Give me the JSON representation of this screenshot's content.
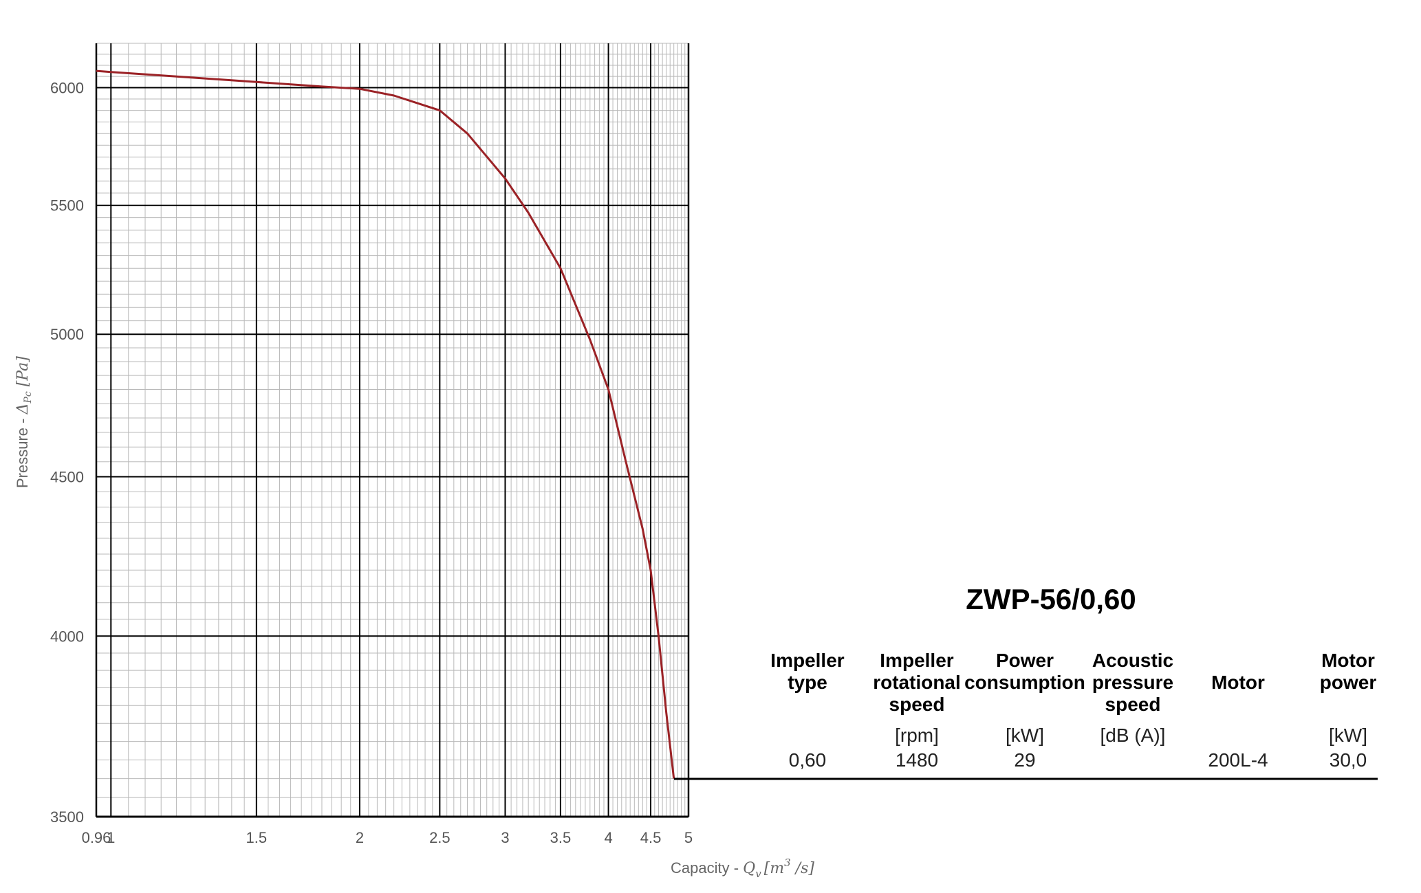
{
  "chart_data": {
    "type": "line",
    "xscale": "log",
    "yscale": "log",
    "xlim": [
      0.96,
      5
    ],
    "ylim": [
      3500,
      6200
    ],
    "x_ticks": [
      0.96,
      1,
      1.5,
      2,
      2.5,
      3,
      3.5,
      4,
      4.5,
      5
    ],
    "x_tick_labels": [
      "0.96",
      "1",
      "1.5",
      "2",
      "2.5",
      "3",
      "3.5",
      "4",
      "4.5",
      "5"
    ],
    "y_ticks": [
      3500,
      4000,
      4500,
      5000,
      5500,
      6000
    ],
    "y_tick_labels": [
      "3500",
      "4000",
      "4500",
      "5000",
      "5500",
      "6000"
    ],
    "xlabel": "Capacity - ",
    "xlabel_math": "Q",
    "xlabel_math_sub": "v",
    "xlabel_unit": "[m",
    "xlabel_unit_sup": "3",
    "xlabel_unit_end": " /s]",
    "ylabel": "Pressure - ",
    "ylabel_math": "Δ",
    "ylabel_math_sub": "Pc",
    "ylabel_unit": " [Pa]",
    "grid": true,
    "series": [
      {
        "color": "#9b2226",
        "x": [
          0.96,
          1.0,
          1.2,
          1.5,
          1.8,
          2.0,
          2.2,
          2.5,
          2.7,
          3.0,
          3.2,
          3.5,
          3.8,
          4.0,
          4.2,
          4.4,
          4.5,
          4.6,
          4.7,
          4.8
        ],
        "y": [
          6075,
          6070,
          6050,
          6025,
          6005,
          5995,
          5965,
          5900,
          5800,
          5610,
          5470,
          5250,
          4980,
          4800,
          4550,
          4330,
          4200,
          4000,
          3780,
          3600
        ]
      }
    ]
  },
  "panel": {
    "title": "ZWP-56/0,60",
    "columns": [
      {
        "header": [
          "Impeller",
          "type"
        ],
        "unit": "",
        "value": "0,60"
      },
      {
        "header": [
          "Impeller",
          "rotational",
          "speed"
        ],
        "unit": "[rpm]",
        "value": "1480"
      },
      {
        "header": [
          "Power",
          "consumption"
        ],
        "unit": "[kW]",
        "value": "29"
      },
      {
        "header": [
          "Acoustic",
          "pressure",
          "speed"
        ],
        "unit": "[dB (A)]",
        "value": ""
      },
      {
        "header": [
          "Motor"
        ],
        "unit": "",
        "value": "200L-4"
      },
      {
        "header": [
          "Motor",
          "power"
        ],
        "unit": "[kW]",
        "value": "30,0"
      }
    ]
  }
}
